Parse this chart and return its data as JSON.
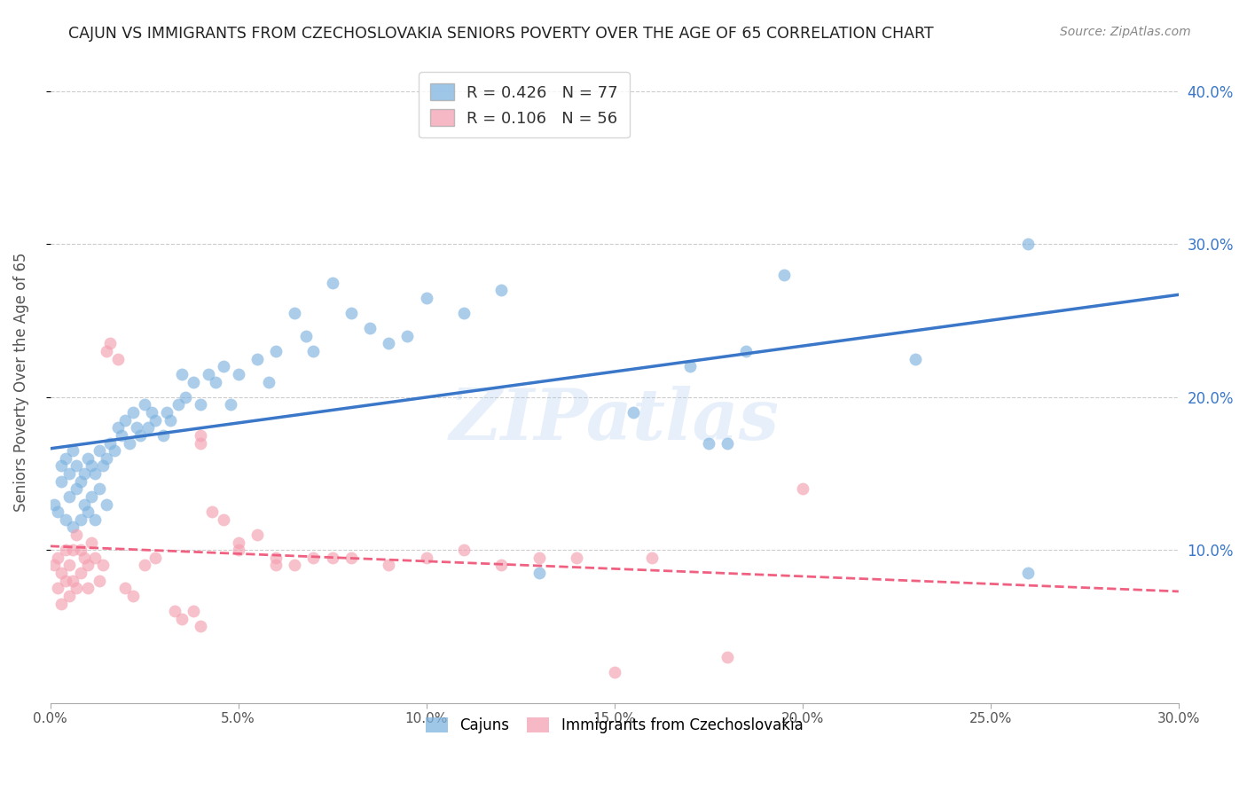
{
  "title": "CAJUN VS IMMIGRANTS FROM CZECHOSLOVAKIA SENIORS POVERTY OVER THE AGE OF 65 CORRELATION CHART",
  "source": "Source: ZipAtlas.com",
  "ylabel": "Seniors Poverty Over the Age of 65",
  "xlim": [
    0.0,
    0.3
  ],
  "ylim": [
    0.0,
    0.42
  ],
  "cajun_color": "#7EB3E0",
  "czech_color": "#F4A0B0",
  "cajun_line_color": "#3A77C8",
  "czech_line_color": "#F06080",
  "legend_R1": "0.426",
  "legend_N1": "77",
  "legend_R2": "0.106",
  "legend_N2": "56",
  "watermark": "ZIPatlas",
  "cajun_x": [
    0.001,
    0.002,
    0.003,
    0.003,
    0.004,
    0.004,
    0.005,
    0.005,
    0.006,
    0.006,
    0.007,
    0.007,
    0.008,
    0.008,
    0.009,
    0.009,
    0.01,
    0.01,
    0.011,
    0.011,
    0.012,
    0.012,
    0.013,
    0.013,
    0.014,
    0.015,
    0.015,
    0.016,
    0.017,
    0.018,
    0.019,
    0.02,
    0.021,
    0.022,
    0.023,
    0.024,
    0.025,
    0.026,
    0.027,
    0.028,
    0.03,
    0.031,
    0.032,
    0.034,
    0.035,
    0.036,
    0.038,
    0.04,
    0.042,
    0.044,
    0.046,
    0.048,
    0.05,
    0.055,
    0.058,
    0.06,
    0.065,
    0.068,
    0.07,
    0.075,
    0.08,
    0.085,
    0.09,
    0.095,
    0.1,
    0.11,
    0.12,
    0.13,
    0.155,
    0.17,
    0.175,
    0.18,
    0.185,
    0.195,
    0.23,
    0.26,
    0.26
  ],
  "cajun_y": [
    0.13,
    0.125,
    0.145,
    0.155,
    0.12,
    0.16,
    0.135,
    0.15,
    0.115,
    0.165,
    0.14,
    0.155,
    0.12,
    0.145,
    0.13,
    0.15,
    0.125,
    0.16,
    0.135,
    0.155,
    0.12,
    0.15,
    0.165,
    0.14,
    0.155,
    0.13,
    0.16,
    0.17,
    0.165,
    0.18,
    0.175,
    0.185,
    0.17,
    0.19,
    0.18,
    0.175,
    0.195,
    0.18,
    0.19,
    0.185,
    0.175,
    0.19,
    0.185,
    0.195,
    0.215,
    0.2,
    0.21,
    0.195,
    0.215,
    0.21,
    0.22,
    0.195,
    0.215,
    0.225,
    0.21,
    0.23,
    0.255,
    0.24,
    0.23,
    0.275,
    0.255,
    0.245,
    0.235,
    0.24,
    0.265,
    0.255,
    0.27,
    0.085,
    0.19,
    0.22,
    0.17,
    0.17,
    0.23,
    0.28,
    0.225,
    0.085,
    0.3
  ],
  "czech_x": [
    0.001,
    0.002,
    0.002,
    0.003,
    0.003,
    0.004,
    0.004,
    0.005,
    0.005,
    0.006,
    0.006,
    0.007,
    0.007,
    0.008,
    0.008,
    0.009,
    0.01,
    0.01,
    0.011,
    0.012,
    0.013,
    0.014,
    0.015,
    0.016,
    0.018,
    0.02,
    0.022,
    0.025,
    0.028,
    0.033,
    0.035,
    0.038,
    0.04,
    0.04,
    0.043,
    0.046,
    0.05,
    0.055,
    0.06,
    0.065,
    0.07,
    0.075,
    0.08,
    0.09,
    0.1,
    0.11,
    0.12,
    0.13,
    0.14,
    0.15,
    0.16,
    0.18,
    0.2,
    0.04,
    0.05,
    0.06
  ],
  "czech_y": [
    0.09,
    0.075,
    0.095,
    0.065,
    0.085,
    0.08,
    0.1,
    0.07,
    0.09,
    0.08,
    0.1,
    0.075,
    0.11,
    0.085,
    0.1,
    0.095,
    0.075,
    0.09,
    0.105,
    0.095,
    0.08,
    0.09,
    0.23,
    0.235,
    0.225,
    0.075,
    0.07,
    0.09,
    0.095,
    0.06,
    0.055,
    0.06,
    0.05,
    0.175,
    0.125,
    0.12,
    0.105,
    0.11,
    0.095,
    0.09,
    0.095,
    0.095,
    0.095,
    0.09,
    0.095,
    0.1,
    0.09,
    0.095,
    0.095,
    0.02,
    0.095,
    0.03,
    0.14,
    0.17,
    0.1,
    0.09
  ],
  "background_color": "#ffffff",
  "grid_color": "#cccccc",
  "title_color": "#222222",
  "axis_label_color": "#555555",
  "right_axis_tick_color": "#3A77C8"
}
